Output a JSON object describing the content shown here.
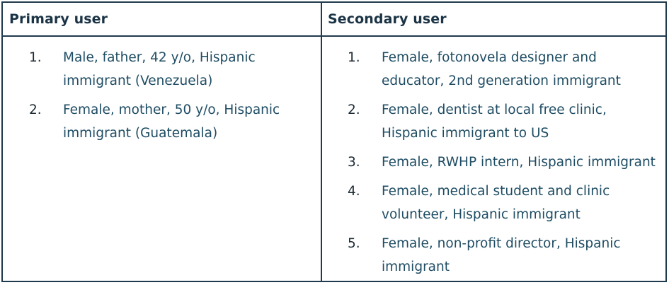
{
  "table": {
    "columns": [
      {
        "header": "Primary user",
        "items": [
          {
            "number": "1.",
            "text": "Male, father, 42 y/o, Hispanic immigrant (Venezuela)"
          },
          {
            "number": "2.",
            "text": "Female, mother, 50 y/o, Hispanic immigrant (Guatemala)"
          }
        ]
      },
      {
        "header": "Secondary user",
        "items": [
          {
            "number": "1.",
            "text": "Female, fotonovela designer and educator, 2nd generation immigrant"
          },
          {
            "number": "2.",
            "text": "Female, dentist at local free clinic, Hispanic immigrant to US"
          },
          {
            "number": "3.",
            "text": "Female, RWHP intern, Hispanic immigrant"
          },
          {
            "number": "4.",
            "text": "Female, medical student and clinic volunteer, Hispanic immigrant"
          },
          {
            "number": "5.",
            "text": "Female, non-profit director, Hispanic immigrant"
          }
        ]
      }
    ]
  },
  "colors": {
    "border": "#1f3a4d",
    "header_text": "#1a3345",
    "body_text": "#1e4c63",
    "number_text": "#1b2a33"
  }
}
